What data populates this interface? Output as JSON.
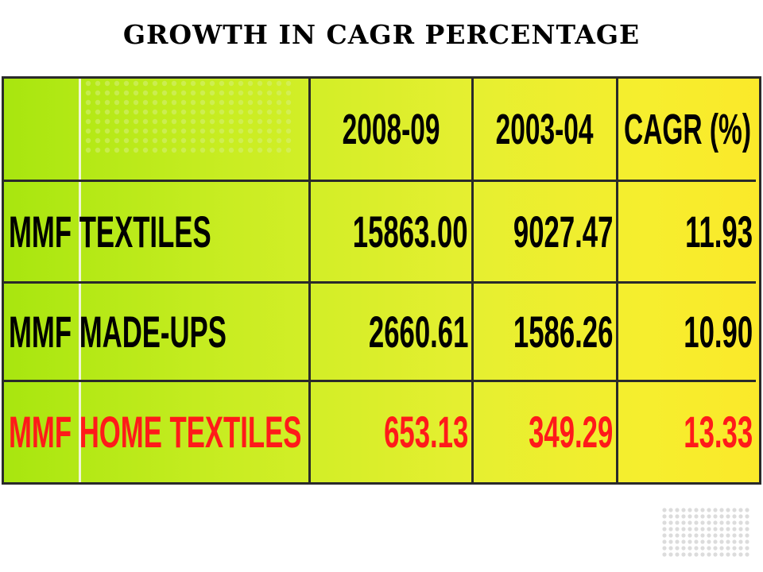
{
  "title": "GROWTH IN CAGR PERCENTAGE",
  "colors": {
    "table_bg_start": "#a8e60f",
    "table_bg_end": "#fbe92a",
    "highlight_text": "#ff1a1a",
    "border": "#2a2a2a"
  },
  "table": {
    "headers": [
      "",
      "2008-09",
      "2003-04",
      "CAGR (%)"
    ],
    "rows": [
      {
        "name": "MMF TEXTILES",
        "v2008": "15863.00",
        "v2003": "9027.47",
        "cagr": "11.93",
        "highlight": false
      },
      {
        "name": "MMF MADE-UPS",
        "v2008": "2660.61",
        "v2003": "1586.26",
        "cagr": "10.90",
        "highlight": false
      },
      {
        "name": "MMF HOME TEXTILES",
        "v2008": "653.13",
        "v2003": "349.29",
        "cagr": "13.33",
        "highlight": true
      }
    ]
  }
}
